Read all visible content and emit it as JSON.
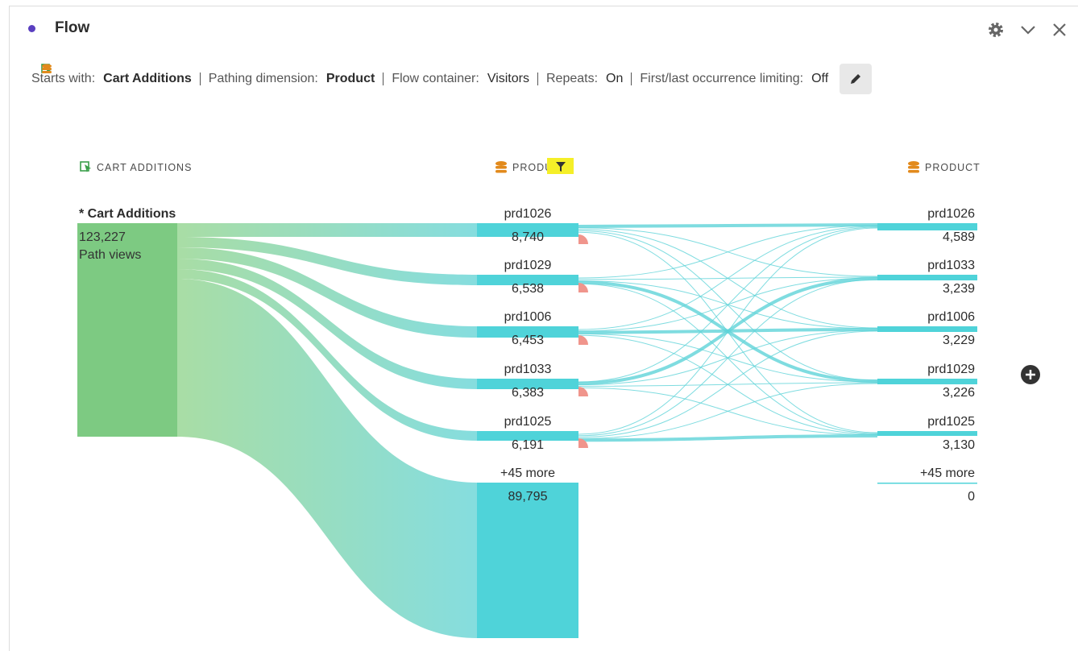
{
  "panel": {
    "title": "Flow"
  },
  "settings": [
    {
      "label": "Starts with:",
      "value": "Cart Additions"
    },
    {
      "label": "Pathing dimension:",
      "value": "Product"
    },
    {
      "label": "Flow container:",
      "value": "Visitors"
    },
    {
      "label": "Repeats:",
      "value": "On"
    },
    {
      "label": "First/last occurrence limiting:",
      "value": "Off"
    }
  ],
  "columns": [
    {
      "header": "CART ADDITIONS",
      "nodes": [
        {
          "label": "* Cart Additions",
          "value": "123,227",
          "note": "Path views"
        }
      ]
    },
    {
      "header": "PRODUCT",
      "nodes": [
        {
          "label": "prd1026",
          "value": "8,740"
        },
        {
          "label": "prd1029",
          "value": "6,538"
        },
        {
          "label": "prd1006",
          "value": "6,453"
        },
        {
          "label": "prd1033",
          "value": "6,383"
        },
        {
          "label": "prd1025",
          "value": "6,191"
        },
        {
          "label": "+45 more",
          "value": "89,795"
        }
      ]
    },
    {
      "header": "PRODUCT",
      "nodes": [
        {
          "label": "prd1026",
          "value": "4,589"
        },
        {
          "label": "prd1033",
          "value": "3,239"
        },
        {
          "label": "prd1006",
          "value": "3,229"
        },
        {
          "label": "prd1029",
          "value": "3,226"
        },
        {
          "label": "prd1025",
          "value": "3,130"
        },
        {
          "label": "+45 more",
          "value": "0"
        }
      ]
    }
  ]
}
